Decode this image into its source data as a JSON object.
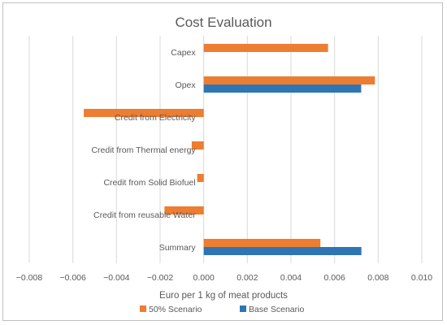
{
  "chart_data": {
    "type": "bar",
    "orientation": "horizontal",
    "title": "Cost Evaluation",
    "xlabel": "Euro per 1 kg of meat products",
    "ylabel": "",
    "categories": [
      "Capex",
      "Opex",
      "Credit from Electricity",
      "Credit from Thermal energy",
      "Credit from Solid Biofuel",
      "Credit from reusable Water",
      "Summary"
    ],
    "series": [
      {
        "name": "50% Scenario",
        "color": "#ED7D31",
        "values": [
          0.0057,
          0.00785,
          -0.0055,
          -0.00055,
          -0.0003,
          -0.0018,
          0.00535
        ]
      },
      {
        "name": "Base Scenario",
        "color": "#2E75B6",
        "values": [
          0,
          0.00722,
          0,
          0,
          0,
          0,
          0.00723
        ]
      }
    ],
    "xlim": [
      -0.008,
      0.01
    ],
    "xticks": [
      "−0.008",
      "−0.006",
      "−0.004",
      "−0.002",
      "0.000",
      "0.002",
      "0.004",
      "0.006",
      "0.008",
      "0.010"
    ],
    "grid": true,
    "legend_position": "bottom",
    "legend": [
      {
        "label": "50% Scenario",
        "color": "#ED7D31"
      },
      {
        "label": "Base Scenario",
        "color": "#2E75B6"
      }
    ]
  }
}
